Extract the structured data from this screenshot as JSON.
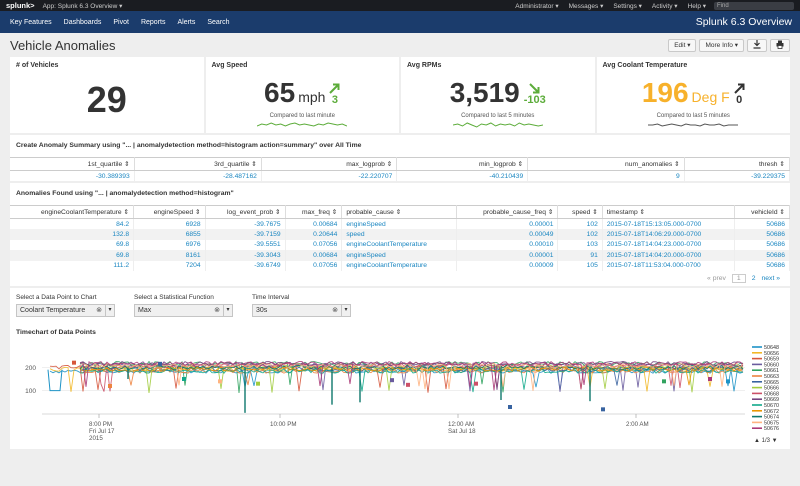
{
  "topbar": {
    "logo": "splunk>",
    "app": "App: Splunk 6.3 Overview ▾",
    "menus": [
      "Administrator ▾",
      "Messages ▾",
      "Settings ▾",
      "Activity ▾",
      "Help ▾"
    ],
    "find_placeholder": "Find"
  },
  "nav": {
    "items": [
      "Key Features",
      "Dashboards",
      "Pivot",
      "Reports",
      "Alerts",
      "Search"
    ],
    "brand": "Splunk 6.3 Overview"
  },
  "page": {
    "title": "Vehicle Anomalies",
    "edit": "Edit ▾",
    "more_info": "More Info ▾",
    "download_icon": "download-icon",
    "print_icon": "print-icon"
  },
  "panels": {
    "vehicles": {
      "title": "# of Vehicles",
      "value": "29"
    },
    "speed": {
      "title": "Avg Speed",
      "value": "65",
      "unit": "mph",
      "delta": "3",
      "compare": "Compared to last minute",
      "color": "#5cac3a",
      "spark": [
        4,
        6,
        5,
        7,
        5,
        6,
        4,
        6,
        7,
        5,
        6,
        5,
        4,
        6,
        5,
        7,
        6,
        5,
        6,
        4
      ]
    },
    "rpm": {
      "title": "Avg RPMs",
      "value": "3,519",
      "delta": "-103",
      "compare": "Compared to last 5 minutes",
      "color": "#5cac3a",
      "spark": [
        5,
        6,
        4,
        7,
        5,
        3,
        6,
        5,
        7,
        4,
        6,
        5,
        6,
        4,
        7,
        5,
        6,
        5,
        4,
        5
      ]
    },
    "coolant": {
      "title": "Avg Coolant Temperature",
      "value": "196",
      "unit": "Deg F",
      "delta": "0",
      "compare": "Compared to last 5 minutes",
      "color": "#f7b12b",
      "spark": [
        5,
        5,
        6,
        4,
        5,
        6,
        5,
        4,
        6,
        5,
        5,
        4,
        6,
        5,
        5,
        6,
        4,
        5,
        5,
        5
      ]
    }
  },
  "summary": {
    "title": "Create Anomaly Summary using \"... | anomalydetection method=histogram action=summary\" over All Time",
    "columns": [
      "1st_quartile ⇕",
      "3rd_quartile ⇕",
      "max_logprob ⇕",
      "min_logprob ⇕",
      "num_anomalies ⇕",
      "thresh ⇕"
    ],
    "row": [
      "-30.389393",
      "-28.487162",
      "-22.220707",
      "-40.210439",
      "9",
      "-39.229375"
    ]
  },
  "anomalies": {
    "title": "Anomalies Found using \"... | anomalydetection method=histogram\"",
    "columns": [
      "engineCoolantTemperature ⇕",
      "engineSpeed ⇕",
      "log_event_prob ⇕",
      "max_freq ⇕",
      "probable_cause ⇕",
      "probable_cause_freq ⇕",
      "speed ⇕",
      "timestamp ⇕",
      "vehicleId ⇕"
    ],
    "rows": [
      [
        "84.2",
        "6928",
        "-39.7675",
        "0.00684",
        "engineSpeed",
        "0.00001",
        "102",
        "2015-07-18T15:13:05.000-0700",
        "50686"
      ],
      [
        "132.8",
        "6855",
        "-39.7159",
        "0.20644",
        "speed",
        "0.00049",
        "102",
        "2015-07-18T14:06:29.000-0700",
        "50686"
      ],
      [
        "69.8",
        "6976",
        "-39.5551",
        "0.07056",
        "engineCoolantTemperature",
        "0.00010",
        "103",
        "2015-07-18T14:04:23.000-0700",
        "50686"
      ],
      [
        "69.8",
        "8161",
        "-39.3043",
        "0.00684",
        "engineSpeed",
        "0.00001",
        "91",
        "2015-07-18T14:04:20.000-0700",
        "50686"
      ],
      [
        "111.2",
        "7204",
        "-39.6749",
        "0.07056",
        "engineCoolantTemperature",
        "0.00009",
        "105",
        "2015-07-18T11:53:04.000-0700",
        "50686"
      ]
    ],
    "pager": {
      "prev": "« prev",
      "p1": "1",
      "p2": "2",
      "next": "next »"
    }
  },
  "controls": {
    "data_point": {
      "label": "Select a Data Point to Chart",
      "value": "Coolant Temperature"
    },
    "stat_function": {
      "label": "Select a Statistical Function",
      "value": "Max"
    },
    "interval": {
      "label": "Time Interval",
      "value": "30s"
    }
  },
  "chart_data": {
    "type": "line",
    "title": "Timechart of Data Points",
    "yticks": [
      "200",
      "100"
    ],
    "ylim": [
      0,
      300
    ],
    "xticks": [
      {
        "t": "8:00 PM",
        "d": "Fri Jul 17",
        "y": "2015"
      },
      {
        "t": "10:00 PM",
        "d": "",
        "y": ""
      },
      {
        "t": "12:00 AM",
        "d": "Sat Jul 18",
        "y": ""
      },
      {
        "t": "2:00 AM",
        "d": "",
        "y": ""
      }
    ],
    "legend": [
      {
        "name": "50648",
        "color": "#1e93c6"
      },
      {
        "name": "50656",
        "color": "#f2b827"
      },
      {
        "name": "50659",
        "color": "#d6563c"
      },
      {
        "name": "50660",
        "color": "#6a5c9e"
      },
      {
        "name": "50661",
        "color": "#31a35f"
      },
      {
        "name": "50663",
        "color": "#ed8440"
      },
      {
        "name": "50665",
        "color": "#3863a0"
      },
      {
        "name": "50666",
        "color": "#a2cc3e"
      },
      {
        "name": "50668",
        "color": "#cc5068"
      },
      {
        "name": "50669",
        "color": "#73427f"
      },
      {
        "name": "50670",
        "color": "#11a88b"
      },
      {
        "name": "50672",
        "color": "#ea9600"
      },
      {
        "name": "50674",
        "color": "#0e776d"
      },
      {
        "name": "50675",
        "color": "#ffb380"
      },
      {
        "name": "50676",
        "color": "#aa3977"
      }
    ],
    "legend_pager": "1/3"
  }
}
